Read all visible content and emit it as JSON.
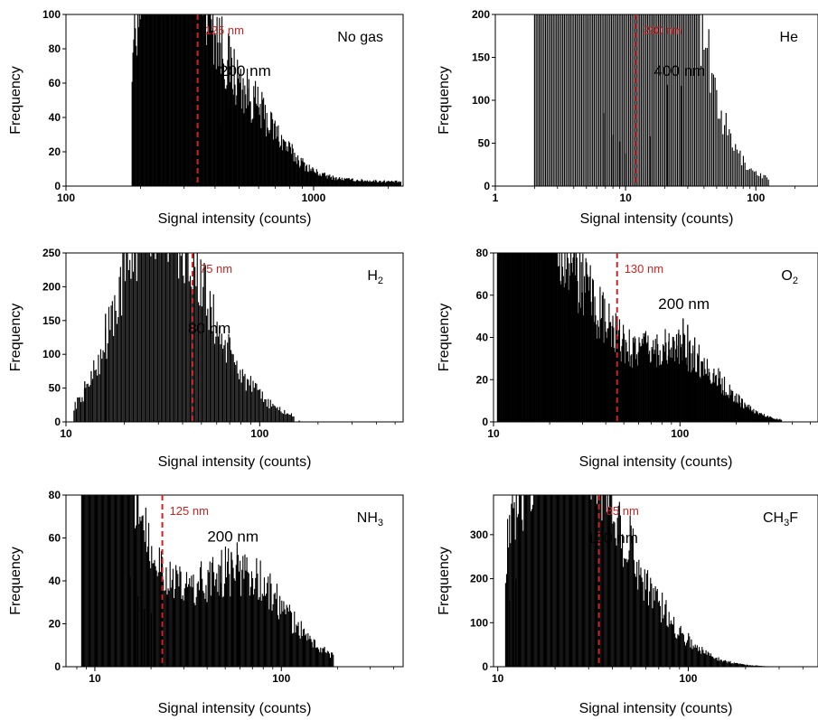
{
  "colors": {
    "bars": "#000000",
    "threshold": "#cc2222",
    "axis": "#000000"
  },
  "chart_data": [
    {
      "type": "bar",
      "gas_label": "No gas",
      "xlabel": "Signal intensity (counts)",
      "ylabel": "Frequency",
      "xscale": "log",
      "xlim": [
        100,
        2300
      ],
      "ylim": [
        0,
        100
      ],
      "xticks": [
        100,
        1000
      ],
      "xtick_labels": [
        "100",
        "1000"
      ],
      "yticks": [
        0,
        20,
        40,
        60,
        80,
        100
      ],
      "ytick_labels": [
        "0",
        "20",
        "40",
        "60",
        "80",
        "100"
      ],
      "threshold": {
        "x": 340,
        "label": "125 nm"
      },
      "peak_annotation": {
        "text": "200 nm",
        "x": 530,
        "y": 60
      },
      "histogram": {
        "x_start": 185,
        "x_end": 2250,
        "bins": 330,
        "edge_x": 185,
        "edge_height": 1,
        "components": [
          {
            "mu": 262,
            "sigma": 0.12,
            "amp": 180
          },
          {
            "mu": 510,
            "sigma": 0.14,
            "amp": 45
          },
          {
            "mu": 720,
            "sigma": 0.5,
            "amp": 4
          }
        ]
      },
      "spikes": [
        {
          "x": 502,
          "value": 58
        },
        {
          "x": 548,
          "value": 57
        },
        {
          "x": 455,
          "value": 46
        },
        {
          "x": 420,
          "value": 36
        },
        {
          "x": 660,
          "value": 15
        },
        {
          "x": 1000,
          "value": 8
        },
        {
          "x": 1420,
          "value": 4
        },
        {
          "x": 2200,
          "value": 2
        }
      ]
    },
    {
      "type": "bar",
      "gas_label": "He",
      "xlabel": "Signal intensity (counts)",
      "ylabel": "Frequency",
      "xscale": "log",
      "xlim": [
        1,
        300
      ],
      "ylim": [
        0,
        200
      ],
      "xticks": [
        1,
        10,
        100
      ],
      "xtick_labels": [
        "1",
        "10",
        "100"
      ],
      "yticks": [
        0,
        50,
        100,
        150,
        200
      ],
      "ytick_labels": [
        "0",
        "50",
        "100",
        "150",
        "200"
      ],
      "threshold": {
        "x": 12,
        "label": "290 nm"
      },
      "peak_annotation": {
        "text": "400 nm",
        "x": 26,
        "y": 120
      },
      "histogram": {
        "x_start": 2,
        "x_end": 125,
        "bins": 150,
        "edge_x": 2,
        "edge_height": 3,
        "components": [
          {
            "mu": 1,
            "sigma": 0.6,
            "amp": 4000
          },
          {
            "mu": 25,
            "sigma": 0.19,
            "amp": 108
          }
        ]
      },
      "spikes": [
        {
          "x": 6.8,
          "value": 85
        },
        {
          "x": 8.0,
          "value": 60
        },
        {
          "x": 9.0,
          "value": 52
        },
        {
          "x": 10.0,
          "value": 38
        },
        {
          "x": 15.5,
          "value": 58
        },
        {
          "x": 21.0,
          "value": 118
        },
        {
          "x": 27.0,
          "value": 117
        }
      ]
    },
    {
      "type": "bar",
      "gas_label": "H2",
      "xlabel": "Signal intensity (counts)",
      "ylabel": "Frequency",
      "xscale": "log",
      "xlim": [
        10,
        550
      ],
      "ylim": [
        0,
        250
      ],
      "xticks": [
        10,
        100
      ],
      "xtick_labels": [
        "10",
        "100"
      ],
      "yticks": [
        0,
        50,
        100,
        150,
        200,
        250
      ],
      "ytick_labels": [
        "0",
        "50",
        "100",
        "150",
        "200",
        "250"
      ],
      "threshold": {
        "x": 45,
        "label": "75 nm"
      },
      "peak_annotation": {
        "text": "80 nm",
        "x": 55,
        "y": 120
      },
      "histogram": {
        "x_start": 11,
        "x_end": 150,
        "bins": 190,
        "edge_x": 11,
        "edge_height": 2,
        "components": [
          {
            "mu": 28,
            "sigma": 0.18,
            "amp": 280
          },
          {
            "mu": 50,
            "sigma": 0.22,
            "amp": 95
          }
        ]
      },
      "spikes": [
        {
          "x": 12.5,
          "value": 60
        },
        {
          "x": 13.5,
          "value": 75
        },
        {
          "x": 16.0,
          "value": 160
        },
        {
          "x": 160,
          "value": 2
        }
      ]
    },
    {
      "type": "bar",
      "gas_label": "O2",
      "xlabel": "Signal intensity (counts)",
      "ylabel": "Frequency",
      "xscale": "log",
      "xlim": [
        10,
        550
      ],
      "ylim": [
        0,
        80
      ],
      "xticks": [
        10,
        100
      ],
      "xtick_labels": [
        "10",
        "100"
      ],
      "yticks": [
        0,
        20,
        40,
        60,
        80
      ],
      "ytick_labels": [
        "0",
        "20",
        "40",
        "60",
        "80"
      ],
      "threshold": {
        "x": 46,
        "label": "130 nm"
      },
      "peak_annotation": {
        "text": "200 nm",
        "x": 105,
        "y": 50
      },
      "histogram": {
        "x_start": 10.5,
        "x_end": 350,
        "bins": 380,
        "edge_x": 10.5,
        "edge_height": 2,
        "components": [
          {
            "mu": 12,
            "sigma": 0.33,
            "amp": 110
          },
          {
            "mu": 35,
            "sigma": 0.35,
            "amp": 12
          },
          {
            "mu": 105,
            "sigma": 0.2,
            "amp": 27
          }
        ]
      },
      "spikes": [
        {
          "x": 104,
          "value": 49
        },
        {
          "x": 98,
          "value": 42
        },
        {
          "x": 110,
          "value": 46
        },
        {
          "x": 120,
          "value": 40
        },
        {
          "x": 87,
          "value": 38
        },
        {
          "x": 74,
          "value": 32
        },
        {
          "x": 26,
          "value": 45
        },
        {
          "x": 29,
          "value": 38
        }
      ]
    },
    {
      "type": "bar",
      "gas_label": "NH3",
      "xlabel": "Signal intensity (counts)",
      "ylabel": "Frequency",
      "xscale": "log",
      "xlim": [
        7,
        450
      ],
      "ylim": [
        0,
        80
      ],
      "xticks": [
        10,
        100
      ],
      "xtick_labels": [
        "10",
        "100"
      ],
      "yticks": [
        0,
        20,
        40,
        60,
        80
      ],
      "ytick_labels": [
        "0",
        "20",
        "40",
        "60",
        "80"
      ],
      "threshold": {
        "x": 23,
        "label": "125 nm"
      },
      "peak_annotation": {
        "text": "200 nm",
        "x": 55,
        "y": 55
      },
      "histogram": {
        "x_start": 8.5,
        "x_end": 190,
        "bins": 260,
        "edge_x": 8.5,
        "edge_height": 3,
        "components": [
          {
            "mu": 10,
            "sigma": 0.22,
            "amp": 130
          },
          {
            "mu": 57,
            "sigma": 0.25,
            "amp": 45
          }
        ]
      },
      "spikes": [
        {
          "x": 15.5,
          "value": 42
        },
        {
          "x": 17.0,
          "value": 33
        },
        {
          "x": 18.5,
          "value": 27
        },
        {
          "x": 20.0,
          "value": 25
        },
        {
          "x": 54,
          "value": 53
        },
        {
          "x": 58,
          "value": 52
        },
        {
          "x": 47,
          "value": 47
        }
      ]
    },
    {
      "type": "bar",
      "gas_label": "CH3F",
      "xlabel": "Signal intensity (counts)",
      "ylabel": "Frequency",
      "xscale": "log",
      "xlim": [
        9.5,
        480
      ],
      "ylim": [
        0,
        390
      ],
      "xticks": [
        10,
        100
      ],
      "xtick_labels": [
        "10",
        "100"
      ],
      "yticks": [
        0,
        100,
        200,
        300
      ],
      "ytick_labels": [
        "0",
        "100",
        "200",
        "300"
      ],
      "threshold": {
        "x": 34,
        "label": "85 nm"
      },
      "peak_annotation": {
        "text": "100 nm",
        "x": 40,
        "y": 265
      },
      "histogram": {
        "x_start": 11,
        "x_end": 260,
        "bins": 270,
        "edge_x": 11,
        "edge_height": 2,
        "components": [
          {
            "mu": 20,
            "sigma": 0.22,
            "amp": 500
          },
          {
            "mu": 42,
            "sigma": 0.25,
            "amp": 180
          }
        ]
      },
      "spikes": [
        {
          "x": 11.5,
          "value": 150
        },
        {
          "x": 12.5,
          "value": 200
        },
        {
          "x": 34,
          "value": 195
        }
      ]
    }
  ]
}
